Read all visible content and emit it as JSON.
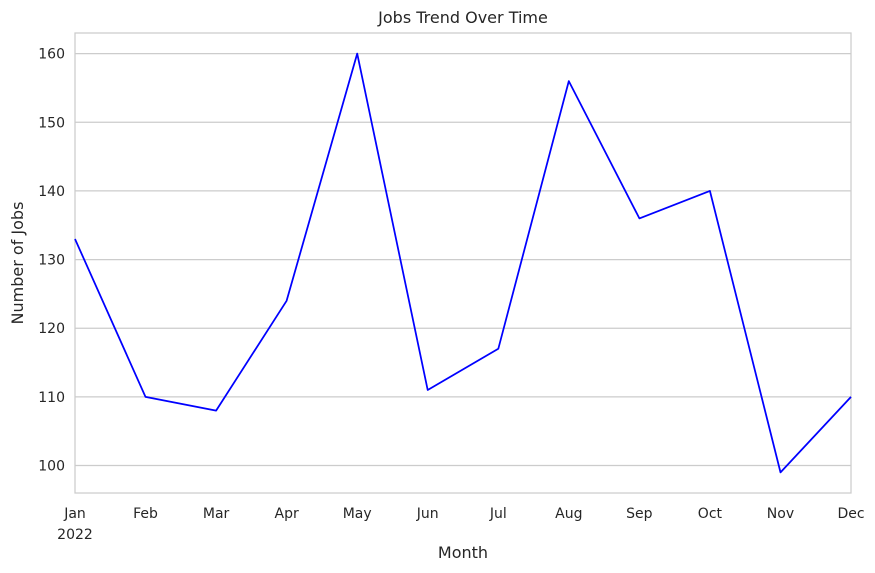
{
  "chart_data": {
    "type": "line",
    "title": "Jobs Trend Over Time",
    "xlabel": "Month",
    "ylabel": "Number of Jobs",
    "categories": [
      "Jan",
      "Feb",
      "Mar",
      "Apr",
      "May",
      "Jun",
      "Jul",
      "Aug",
      "Sep",
      "Oct",
      "Nov",
      "Dec"
    ],
    "year_label": "2022",
    "series": [
      {
        "color": "#0000ff",
        "values": [
          133,
          110,
          108,
          124,
          160,
          111,
          117,
          156,
          136,
          140,
          99,
          110
        ]
      }
    ],
    "yticks": [
      100,
      110,
      120,
      130,
      140,
      150,
      160
    ],
    "ylim": [
      96,
      163
    ],
    "grid": "horizontal",
    "colors": {
      "grid": "#cccccc",
      "spine": "#cccccc",
      "text": "#262626"
    }
  }
}
